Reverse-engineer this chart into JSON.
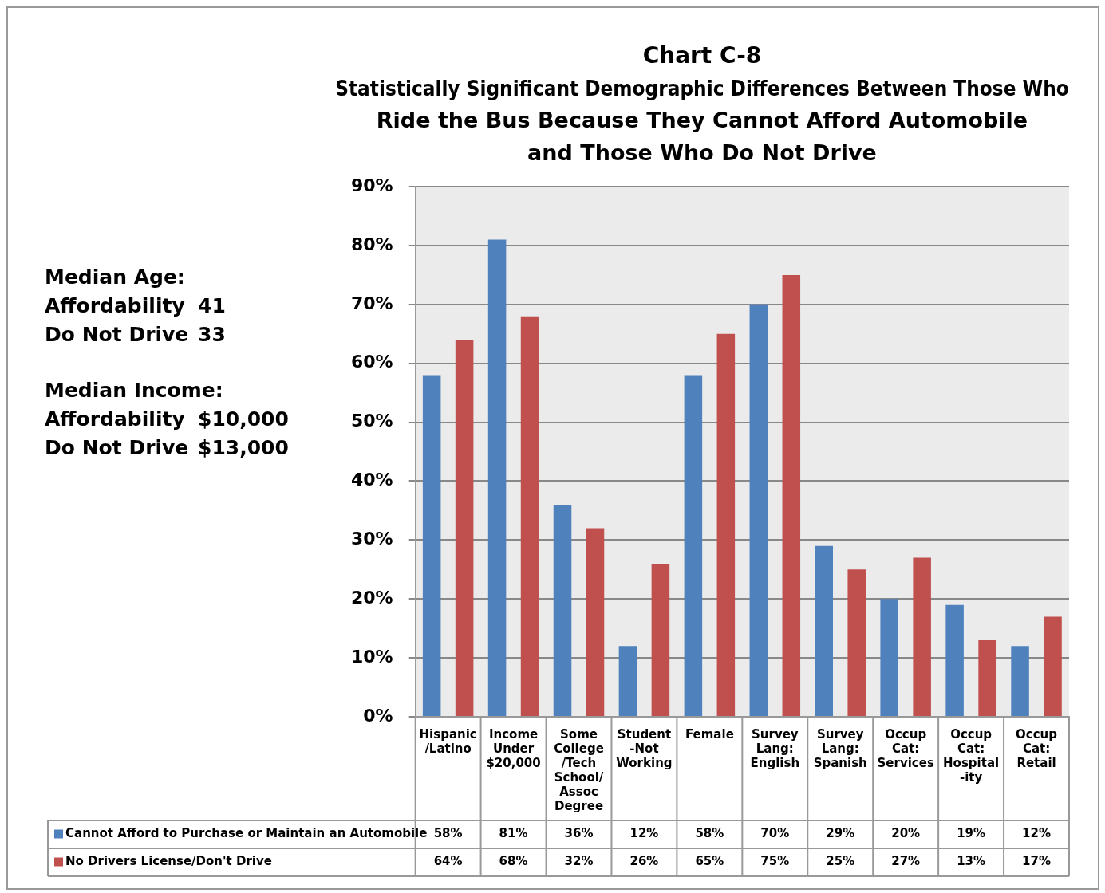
{
  "chart_data": {
    "type": "bar",
    "title": "Chart C-8",
    "subtitle": "Statistically Significant Demographic Differences Between Those Who\nRide the Bus Because They Cannot Afford Automobile\nand Those Who Do Not Drive",
    "categories": [
      "Hispanic/Latino",
      "Income Under $20,000",
      "Some College /Tech School/ Assoc Degree",
      "Student -Not Working",
      "Female",
      "Survey Lang: English",
      "Survey Lang: Spanish",
      "Occup Cat: Services",
      "Occup Cat: Hospital -ity",
      "Occup Cat: Retail"
    ],
    "series": [
      {
        "name": "Cannot Afford to Purchase or Maintain an Automobile",
        "color": "#4f81bd",
        "values": [
          58,
          81,
          36,
          12,
          58,
          70,
          29,
          20,
          19,
          12
        ],
        "value_labels": [
          "58%",
          "81%",
          "36%",
          "12%",
          "58%",
          "70%",
          "29%",
          "20%",
          "19%",
          "12%"
        ]
      },
      {
        "name": "No Drivers License/Don't Drive",
        "color": "#c0504d",
        "values": [
          64,
          68,
          32,
          26,
          65,
          75,
          25,
          27,
          13,
          17
        ],
        "value_labels": [
          "64%",
          "68%",
          "32%",
          "26%",
          "65%",
          "75%",
          "25%",
          "27%",
          "13%",
          "17%"
        ]
      }
    ],
    "ylim": [
      0,
      90
    ],
    "yticks": [
      {
        "value": 0,
        "label": "0%"
      },
      {
        "value": 10,
        "label": "10%"
      },
      {
        "value": 20,
        "label": "20%"
      },
      {
        "value": 30,
        "label": "30%"
      },
      {
        "value": 40,
        "label": "40%"
      },
      {
        "value": 50,
        "label": "50%"
      },
      {
        "value": 60,
        "label": "60%"
      },
      {
        "value": 70,
        "label": "70%"
      },
      {
        "value": 80,
        "label": "80%"
      },
      {
        "value": 90,
        "label": "90%"
      }
    ],
    "grid": "y",
    "legend": "bottom",
    "annotations": [
      "Median Age:",
      "Affordability 41",
      "Do Not Drive 33",
      "Median Income:",
      "Affordability $10,000",
      "Do Not Drive $13,000"
    ]
  }
}
